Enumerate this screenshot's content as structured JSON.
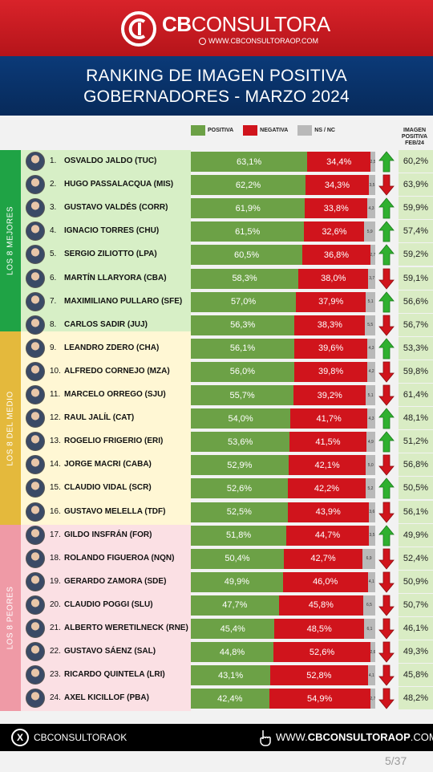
{
  "header": {
    "logo_name_bold": "CB",
    "logo_name_rest": "CONSULTORA",
    "logo_url": "WWW.CBCONSULTORAOP.COM",
    "title_line1": "RANKING DE IMAGEN POSITIVA",
    "title_line2": "GOBERNADORES - MARZO 2024"
  },
  "legend": {
    "positive": "POSITIVA",
    "negative": "NEGATIVA",
    "ns": "NS / NC",
    "prev_head": [
      "IMAGEN",
      "POSITIVA",
      "FEB/24"
    ]
  },
  "groups": [
    {
      "label": "LOS 8 MEJORES",
      "tab_color": "#1fa345",
      "bg_color": "#d7efc6"
    },
    {
      "label": "LOS 8 DEL MEDIO",
      "tab_color": "#e4b93c",
      "bg_color": "#fff7d4"
    },
    {
      "label": "LOS 8 PEORES",
      "tab_color": "#ef9aa6",
      "bg_color": "#fbe0e4"
    }
  ],
  "colors": {
    "positive": "#6ca146",
    "negative": "#d0141c",
    "ns": "#b9b9b9",
    "arrow_up": "#2fb02f",
    "arrow_down": "#d0141c"
  },
  "chart_data": {
    "type": "bar",
    "stacked": true,
    "orientation": "horizontal",
    "title": "RANKING DE IMAGEN POSITIVA GOBERNADORES - MARZO 2024",
    "categories": [
      "OSVALDO JALDO (TUC)",
      "HUGO PASSALACQUA (MIS)",
      "GUSTAVO VALDÉS (CORR)",
      "IGNACIO TORRES (CHU)",
      "SERGIO ZILIOTTO (LPA)",
      "MARTÍN LLARYORA (CBA)",
      "MAXIMILIANO PULLARO (SFE)",
      "CARLOS SADIR (JUJ)",
      "LEANDRO ZDERO (CHA)",
      "ALFREDO CORNEJO (MZA)",
      "MARCELO ORREGO (SJU)",
      "RAUL JALÍL (CAT)",
      "ROGELIO FRIGERIO (ERI)",
      "JORGE MACRI (CABA)",
      "CLAUDIO VIDAL (SCR)",
      "GUSTAVO MELELLA (TDF)",
      "GILDO INSFRÁN (FOR)",
      "ROLANDO FIGUEROA (NQN)",
      "GERARDO ZAMORA (SDE)",
      "CLAUDIO POGGI (SLU)",
      "ALBERTO WERETILNECK (RNE)",
      "GUSTAVO SÁENZ (SAL)",
      "RICARDO QUINTELA (LRI)",
      "AXEL KICILLOF (PBA)"
    ],
    "ranks": [
      "1.",
      "2.",
      "3.",
      "4.",
      "5.",
      "6.",
      "7.",
      "8.",
      "9.",
      "10.",
      "11.",
      "12.",
      "13.",
      "14.",
      "15.",
      "16.",
      "17.",
      "18.",
      "19.",
      "20.",
      "21.",
      "22.",
      "23.",
      "24."
    ],
    "series": [
      {
        "name": "POSITIVA",
        "values": [
          63.1,
          62.2,
          61.9,
          61.5,
          60.5,
          58.3,
          57.0,
          56.3,
          56.1,
          56.0,
          55.7,
          54.0,
          53.6,
          52.9,
          52.6,
          52.5,
          51.8,
          50.4,
          49.9,
          47.7,
          45.4,
          44.8,
          43.1,
          42.4
        ]
      },
      {
        "name": "NEGATIVA",
        "values": [
          34.4,
          34.3,
          33.8,
          32.6,
          36.8,
          38.0,
          37.9,
          38.3,
          39.6,
          39.8,
          39.2,
          41.7,
          41.5,
          42.1,
          42.2,
          43.9,
          44.7,
          42.7,
          46.0,
          45.8,
          48.5,
          52.6,
          52.8,
          54.9
        ]
      },
      {
        "name": "NS / NC",
        "values": [
          2.5,
          3.5,
          4.3,
          5.9,
          2.7,
          3.7,
          5.1,
          5.5,
          4.3,
          4.2,
          5.1,
          4.3,
          4.9,
          5.0,
          5.2,
          3.6,
          3.5,
          6.9,
          4.1,
          6.5,
          6.1,
          2.6,
          4.1,
          2.7
        ]
      }
    ],
    "labels_pos": [
      "63,1%",
      "62,2%",
      "61,9%",
      "61,5%",
      "60,5%",
      "58,3%",
      "57,0%",
      "56,3%",
      "56,1%",
      "56,0%",
      "55,7%",
      "54,0%",
      "53,6%",
      "52,9%",
      "52,6%",
      "52,5%",
      "51,8%",
      "50,4%",
      "49,9%",
      "47,7%",
      "45,4%",
      "44,8%",
      "43,1%",
      "42,4%"
    ],
    "labels_neg": [
      "34,4%",
      "34,3%",
      "33,8%",
      "32,6%",
      "36,8%",
      "38,0%",
      "37,9%",
      "38,3%",
      "39,6%",
      "39,8%",
      "39,2%",
      "41,7%",
      "41,5%",
      "42,1%",
      "42,2%",
      "43,9%",
      "44,7%",
      "42,7%",
      "46,0%",
      "45,8%",
      "48,5%",
      "52,6%",
      "52,8%",
      "54,9%"
    ],
    "labels_ns": [
      "2,5",
      "3,5",
      "4,3",
      "5,9",
      "2,7",
      "3,7",
      "5,1",
      "5,5",
      "4,3",
      "4,2",
      "5,1",
      "4,3",
      "4,9",
      "5,0",
      "5,2",
      "3,6",
      "3,5",
      "6,9",
      "4,1",
      "6,5",
      "6,1",
      "2,6",
      "4,1",
      "2,7"
    ],
    "trend": [
      "up",
      "down",
      "up",
      "up",
      "up",
      "down",
      "up",
      "down",
      "up",
      "down",
      "down",
      "up",
      "up",
      "down",
      "up",
      "down",
      "up",
      "down",
      "down",
      "down",
      "down",
      "down",
      "down",
      "down"
    ],
    "previous": [
      "60,2%",
      "63,9%",
      "59,9%",
      "57,4%",
      "59,2%",
      "59,1%",
      "56,6%",
      "56,7%",
      "53,3%",
      "59,8%",
      "61,4%",
      "48,1%",
      "51,2%",
      "56,8%",
      "50,5%",
      "56,1%",
      "49,9%",
      "52,4%",
      "50,9%",
      "50,7%",
      "46,1%",
      "49,3%",
      "45,8%",
      "48,2%"
    ],
    "xlim": [
      0,
      100
    ]
  },
  "footer": {
    "left_text": "CBCONSULTORAOK",
    "right_prefix": "WWW.",
    "right_bold": "CBCONSULTORAOP",
    "right_suffix": ".COM",
    "page_number": "5/37"
  }
}
